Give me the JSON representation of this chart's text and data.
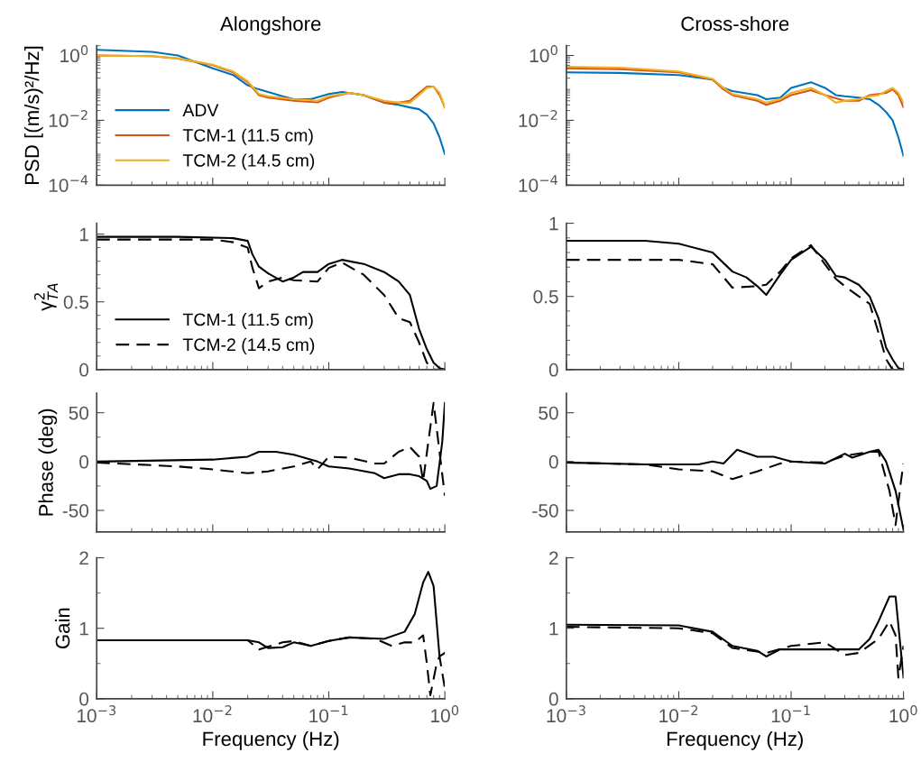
{
  "chart_data": [
    {
      "type": "line",
      "title": "Alongshore",
      "ylabel": "PSD [(m/s)²/Hz]",
      "log": "xy",
      "xlim": [
        0.001,
        1
      ],
      "xticks": [
        {
          "value": 0.001,
          "label": null
        },
        {
          "value": 0.01,
          "label": null
        },
        {
          "value": 0.1,
          "label": null
        },
        {
          "value": 1,
          "label": null
        }
      ],
      "ylim": [
        0.0001,
        2
      ],
      "yticks": [
        {
          "value": 0.0001,
          "label": "10$^{−4}$"
        },
        {
          "value": 0.01,
          "label": "10$^{−2}$"
        },
        {
          "value": 1,
          "label": "10$^{0}$"
        }
      ],
      "tick_labels": "y",
      "legend": "bottom left",
      "line_style": "solid",
      "series": [
        {
          "name": "ADV",
          "color": "#0072bd",
          "x": [
            0.001,
            0.003,
            0.005,
            0.01,
            0.015,
            0.02,
            0.025,
            0.03,
            0.04,
            0.05,
            0.07,
            0.1,
            0.13,
            0.2,
            0.3,
            0.4,
            0.5,
            0.6,
            0.7,
            0.8,
            0.9,
            1.0
          ],
          "values": [
            1.5,
            1.3,
            1.0,
            0.4,
            0.25,
            0.12,
            0.09,
            0.075,
            0.055,
            0.045,
            0.045,
            0.065,
            0.075,
            0.06,
            0.035,
            0.03,
            0.025,
            0.022,
            0.015,
            0.008,
            0.003,
            0.0009
          ]
        },
        {
          "name": "TCM-1 (11.5 cm)",
          "color": "#d95319",
          "x": [
            0.001,
            0.003,
            0.005,
            0.01,
            0.015,
            0.02,
            0.025,
            0.03,
            0.05,
            0.08,
            0.1,
            0.15,
            0.2,
            0.3,
            0.4,
            0.5,
            0.6,
            0.7,
            0.8,
            0.9,
            1.0
          ],
          "values": [
            1.0,
            0.95,
            0.8,
            0.5,
            0.3,
            0.15,
            0.06,
            0.05,
            0.04,
            0.036,
            0.05,
            0.07,
            0.06,
            0.035,
            0.035,
            0.04,
            0.07,
            0.11,
            0.11,
            0.06,
            0.025
          ]
        },
        {
          "name": "TCM-2 (14.5 cm)",
          "color": "#edb120",
          "x": [
            0.001,
            0.003,
            0.005,
            0.01,
            0.015,
            0.02,
            0.025,
            0.03,
            0.05,
            0.08,
            0.1,
            0.15,
            0.2,
            0.3,
            0.4,
            0.5,
            0.6,
            0.7,
            0.8,
            0.9,
            1.0
          ],
          "values": [
            1.0,
            0.95,
            0.82,
            0.52,
            0.32,
            0.16,
            0.065,
            0.055,
            0.045,
            0.04,
            0.055,
            0.07,
            0.06,
            0.04,
            0.035,
            0.035,
            0.06,
            0.1,
            0.11,
            0.07,
            0.025
          ]
        }
      ]
    },
    {
      "type": "line",
      "title": "Cross-shore",
      "log": "xy",
      "xlim": [
        0.001,
        1
      ],
      "xticks": [
        {
          "value": 0.001,
          "label": null
        },
        {
          "value": 0.01,
          "label": null
        },
        {
          "value": 0.1,
          "label": null
        },
        {
          "value": 1,
          "label": null
        }
      ],
      "ylim": [
        0.0001,
        2
      ],
      "yticks": [
        {
          "value": 0.0001,
          "label": "10$^{−4}$"
        },
        {
          "value": 0.01,
          "label": "10$^{−2}$"
        },
        {
          "value": 1,
          "label": "10$^{0}$"
        }
      ],
      "tick_labels": "y",
      "line_style": "solid",
      "series": [
        {
          "color": "#0072bd",
          "x": [
            0.001,
            0.003,
            0.01,
            0.02,
            0.025,
            0.03,
            0.05,
            0.06,
            0.08,
            0.1,
            0.15,
            0.2,
            0.25,
            0.3,
            0.4,
            0.5,
            0.6,
            0.7,
            0.8,
            0.9,
            1.0
          ],
          "values": [
            0.3,
            0.29,
            0.25,
            0.18,
            0.1,
            0.08,
            0.06,
            0.045,
            0.05,
            0.1,
            0.15,
            0.1,
            0.06,
            0.055,
            0.05,
            0.045,
            0.03,
            0.018,
            0.01,
            0.003,
            0.0008
          ]
        },
        {
          "color": "#d95319",
          "x": [
            0.001,
            0.003,
            0.01,
            0.02,
            0.025,
            0.03,
            0.05,
            0.06,
            0.08,
            0.1,
            0.15,
            0.2,
            0.3,
            0.4,
            0.5,
            0.6,
            0.7,
            0.8,
            0.9,
            1.0
          ],
          "values": [
            0.4,
            0.38,
            0.3,
            0.18,
            0.09,
            0.06,
            0.04,
            0.03,
            0.04,
            0.06,
            0.085,
            0.06,
            0.04,
            0.04,
            0.06,
            0.065,
            0.07,
            0.09,
            0.06,
            0.025
          ]
        },
        {
          "color": "#edb120",
          "x": [
            0.001,
            0.003,
            0.01,
            0.02,
            0.025,
            0.03,
            0.05,
            0.06,
            0.08,
            0.1,
            0.15,
            0.2,
            0.25,
            0.3,
            0.4,
            0.5,
            0.6,
            0.7,
            0.8,
            0.9,
            1.0
          ],
          "values": [
            0.45,
            0.42,
            0.32,
            0.19,
            0.1,
            0.065,
            0.045,
            0.035,
            0.045,
            0.07,
            0.1,
            0.06,
            0.035,
            0.04,
            0.045,
            0.055,
            0.06,
            0.08,
            0.1,
            0.07,
            0.035
          ]
        }
      ]
    },
    {
      "type": "line",
      "ylabel": "γ$^{2}$$_{TA}$",
      "log": "x",
      "xlim": [
        0.001,
        1
      ],
      "xticks": [
        {
          "value": 0.001,
          "label": null
        },
        {
          "value": 0.01,
          "label": null
        },
        {
          "value": 0.1,
          "label": null
        },
        {
          "value": 1,
          "label": null
        }
      ],
      "ylim": [
        0,
        1.08
      ],
      "yticks": [
        0,
        0.5,
        1
      ],
      "tick_labels": "y",
      "legend": "bottom left",
      "series": [
        {
          "name": "TCM-1 (11.5 cm)",
          "color": "#000000",
          "line_style": "solid",
          "x": [
            0.001,
            0.005,
            0.015,
            0.02,
            0.022,
            0.025,
            0.03,
            0.04,
            0.05,
            0.06,
            0.08,
            0.1,
            0.13,
            0.2,
            0.3,
            0.4,
            0.5,
            0.6,
            0.7,
            0.8,
            0.9,
            1.0
          ],
          "values": [
            0.98,
            0.98,
            0.97,
            0.95,
            0.85,
            0.76,
            0.71,
            0.65,
            0.68,
            0.72,
            0.72,
            0.78,
            0.81,
            0.78,
            0.72,
            0.65,
            0.55,
            0.3,
            0.15,
            0.05,
            0.01,
            0.0
          ]
        },
        {
          "name": "TCM-2 (14.5 cm)",
          "color": "#000000",
          "line_style": "dashed",
          "x": [
            0.001,
            0.005,
            0.01,
            0.015,
            0.02,
            0.022,
            0.025,
            0.03,
            0.04,
            0.05,
            0.08,
            0.1,
            0.13,
            0.2,
            0.3,
            0.4,
            0.5,
            0.6,
            0.7,
            0.8,
            1.0
          ],
          "values": [
            0.96,
            0.96,
            0.96,
            0.94,
            0.9,
            0.75,
            0.6,
            0.65,
            0.68,
            0.66,
            0.65,
            0.75,
            0.79,
            0.7,
            0.55,
            0.38,
            0.35,
            0.2,
            0.05,
            0.0,
            0.0
          ]
        }
      ]
    },
    {
      "type": "line",
      "log": "x",
      "xlim": [
        0.001,
        1
      ],
      "xticks": [
        {
          "value": 0.001,
          "label": null
        },
        {
          "value": 0.01,
          "label": null
        },
        {
          "value": 0.1,
          "label": null
        },
        {
          "value": 1,
          "label": null
        }
      ],
      "ylim": [
        0,
        1
      ],
      "yticks": [
        0,
        0.5,
        1
      ],
      "tick_labels": "y",
      "series": [
        {
          "color": "#000000",
          "line_style": "solid",
          "x": [
            0.001,
            0.005,
            0.01,
            0.02,
            0.03,
            0.04,
            0.05,
            0.06,
            0.08,
            0.1,
            0.15,
            0.2,
            0.25,
            0.3,
            0.4,
            0.5,
            0.6,
            0.7,
            0.8,
            0.9,
            1.0
          ],
          "values": [
            0.88,
            0.88,
            0.86,
            0.8,
            0.67,
            0.63,
            0.57,
            0.51,
            0.65,
            0.75,
            0.84,
            0.75,
            0.64,
            0.63,
            0.58,
            0.5,
            0.35,
            0.15,
            0.07,
            0.01,
            0.0
          ]
        },
        {
          "color": "#000000",
          "line_style": "dashed",
          "x": [
            0.001,
            0.01,
            0.02,
            0.03,
            0.05,
            0.06,
            0.08,
            0.1,
            0.15,
            0.2,
            0.25,
            0.3,
            0.4,
            0.5,
            0.6,
            0.7,
            0.8,
            1.0
          ],
          "values": [
            0.75,
            0.75,
            0.72,
            0.56,
            0.57,
            0.58,
            0.67,
            0.76,
            0.85,
            0.72,
            0.62,
            0.57,
            0.5,
            0.45,
            0.25,
            0.07,
            0.0,
            0.0
          ]
        }
      ]
    },
    {
      "type": "line",
      "ylabel": "Phase (deg)",
      "log": "x",
      "xlim": [
        0.001,
        1
      ],
      "xticks": [
        {
          "value": 0.001,
          "label": null
        },
        {
          "value": 0.01,
          "label": null
        },
        {
          "value": 0.1,
          "label": null
        },
        {
          "value": 1,
          "label": null
        }
      ],
      "ylim": [
        -72,
        70
      ],
      "yticks": [
        {
          "value": -50,
          "label": "-50"
        },
        0,
        50
      ],
      "tick_labels": "y",
      "series": [
        {
          "color": "#000000",
          "line_style": "solid",
          "x": [
            0.001,
            0.01,
            0.02,
            0.025,
            0.035,
            0.05,
            0.08,
            0.1,
            0.15,
            0.25,
            0.3,
            0.4,
            0.5,
            0.6,
            0.7,
            0.75,
            0.85,
            0.95,
            1.0
          ],
          "values": [
            0,
            2,
            5,
            10,
            10,
            7,
            0,
            -5,
            -7,
            -12,
            -17,
            -13,
            -13,
            -15,
            -20,
            -28,
            -25,
            20,
            60
          ]
        },
        {
          "color": "#000000",
          "line_style": "dashed",
          "x": [
            0.001,
            0.005,
            0.01,
            0.02,
            0.03,
            0.05,
            0.07,
            0.08,
            0.1,
            0.15,
            0.25,
            0.3,
            0.4,
            0.5,
            0.6,
            0.65,
            0.72,
            0.8,
            0.9,
            1.0
          ],
          "values": [
            -1,
            -5,
            -8,
            -12,
            -10,
            -5,
            0,
            -8,
            5,
            4,
            -2,
            -2,
            10,
            15,
            5,
            -20,
            20,
            60,
            10,
            -35
          ]
        }
      ]
    },
    {
      "type": "line",
      "log": "x",
      "xlim": [
        0.001,
        1
      ],
      "xticks": [
        {
          "value": 0.001,
          "label": null
        },
        {
          "value": 0.01,
          "label": null
        },
        {
          "value": 0.1,
          "label": null
        },
        {
          "value": 1,
          "label": null
        }
      ],
      "ylim": [
        -72,
        70
      ],
      "yticks": [
        {
          "value": -50,
          "label": "-50"
        },
        0,
        50
      ],
      "tick_labels": "y",
      "series": [
        {
          "color": "#000000",
          "line_style": "solid",
          "x": [
            0.001,
            0.005,
            0.015,
            0.02,
            0.025,
            0.033,
            0.05,
            0.07,
            0.1,
            0.2,
            0.3,
            0.35,
            0.5,
            0.6,
            0.7,
            0.85,
            1.0
          ],
          "values": [
            -1,
            -3,
            -3,
            0,
            -2,
            12,
            5,
            5,
            0,
            -2,
            8,
            4,
            10,
            12,
            0,
            -30,
            -70
          ]
        },
        {
          "color": "#000000",
          "line_style": "dashed",
          "x": [
            0.001,
            0.005,
            0.01,
            0.02,
            0.03,
            0.05,
            0.08,
            0.1,
            0.2,
            0.3,
            0.5,
            0.6,
            0.75,
            0.85,
            0.95,
            1.0
          ],
          "values": [
            -1,
            -3,
            -8,
            -10,
            -18,
            -10,
            -2,
            0,
            -1,
            6,
            10,
            10,
            -30,
            -65,
            -20,
            -2
          ]
        }
      ]
    },
    {
      "type": "line",
      "ylabel": "Gain",
      "xlabel": "Frequency (Hz)",
      "log": "x",
      "xlim": [
        0.001,
        1
      ],
      "xticks": [
        {
          "value": 0.001,
          "label": "10$^{−3}$"
        },
        {
          "value": 0.01,
          "label": "10$^{−2}$"
        },
        {
          "value": 0.1,
          "label": "10$^{−1}$"
        },
        {
          "value": 1,
          "label": "10$^{0}$"
        }
      ],
      "ylim": [
        0,
        2
      ],
      "yticks": [
        0,
        1,
        2
      ],
      "series": [
        {
          "color": "#000000",
          "line_style": "solid",
          "x": [
            0.001,
            0.01,
            0.02,
            0.025,
            0.03,
            0.04,
            0.05,
            0.07,
            0.1,
            0.15,
            0.3,
            0.45,
            0.55,
            0.65,
            0.72,
            0.8,
            0.9,
            1.0
          ],
          "values": [
            0.83,
            0.83,
            0.83,
            0.8,
            0.72,
            0.73,
            0.8,
            0.75,
            0.82,
            0.87,
            0.85,
            0.95,
            1.2,
            1.65,
            1.8,
            1.6,
            0.6,
            0.65
          ]
        },
        {
          "color": "#000000",
          "line_style": "dashed",
          "x": [
            0.001,
            0.01,
            0.02,
            0.025,
            0.04,
            0.05,
            0.07,
            0.1,
            0.15,
            0.25,
            0.35,
            0.45,
            0.55,
            0.65,
            0.7,
            0.75,
            0.85,
            0.9,
            1.0
          ],
          "values": [
            0.83,
            0.83,
            0.83,
            0.7,
            0.8,
            0.82,
            0.75,
            0.82,
            0.87,
            0.85,
            0.75,
            0.8,
            0.8,
            0.9,
            0.5,
            0.05,
            0.5,
            0.6,
            0.15
          ]
        }
      ]
    },
    {
      "type": "line",
      "xlabel": "Frequency (Hz)",
      "log": "x",
      "xlim": [
        0.001,
        1
      ],
      "xticks": [
        {
          "value": 0.001,
          "label": "10$^{−3}$"
        },
        {
          "value": 0.01,
          "label": "10$^{−2}$"
        },
        {
          "value": 0.1,
          "label": "10$^{−1}$"
        },
        {
          "value": 1,
          "label": "10$^{0}$"
        }
      ],
      "ylim": [
        0,
        2
      ],
      "yticks": [
        0,
        1,
        2
      ],
      "series": [
        {
          "color": "#000000",
          "line_style": "solid",
          "x": [
            0.001,
            0.01,
            0.02,
            0.03,
            0.05,
            0.06,
            0.08,
            0.2,
            0.4,
            0.5,
            0.6,
            0.75,
            0.85,
            1.0
          ],
          "values": [
            1.05,
            1.04,
            0.95,
            0.75,
            0.68,
            0.6,
            0.7,
            0.7,
            0.7,
            0.85,
            1.1,
            1.45,
            1.45,
            0.3
          ]
        },
        {
          "color": "#000000",
          "line_style": "dashed",
          "x": [
            0.001,
            0.01,
            0.02,
            0.03,
            0.06,
            0.1,
            0.2,
            0.3,
            0.4,
            0.6,
            0.75,
            0.85,
            0.9,
            1.0
          ],
          "values": [
            1.02,
            1.0,
            0.93,
            0.72,
            0.65,
            0.75,
            0.8,
            0.62,
            0.65,
            0.85,
            1.1,
            0.9,
            0.3,
            0.75
          ]
        }
      ]
    }
  ]
}
